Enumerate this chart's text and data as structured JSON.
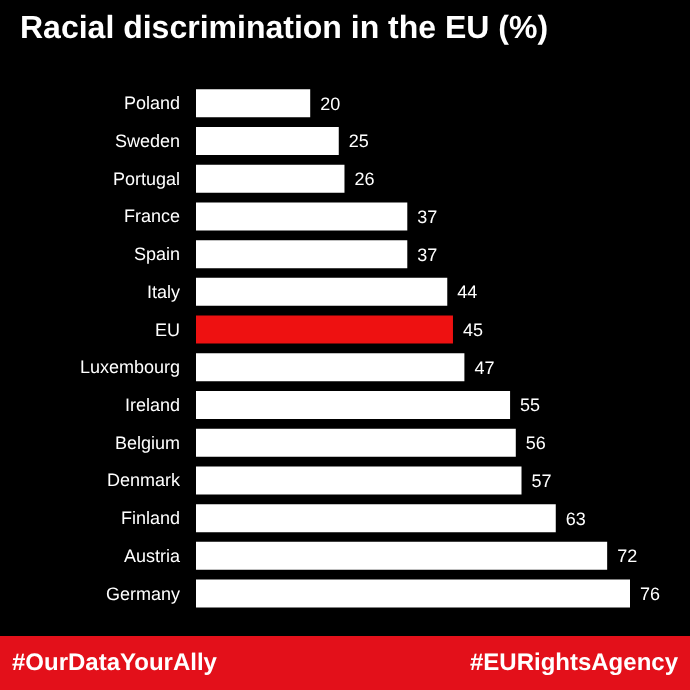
{
  "chart_data": {
    "type": "bar",
    "orientation": "horizontal",
    "title": "Racial discrimination in the EU (%)",
    "categories": [
      "Poland",
      "Sweden",
      "Portugal",
      "France",
      "Spain",
      "Italy",
      "EU",
      "Luxembourg",
      "Ireland",
      "Belgium",
      "Denmark",
      "Finland",
      "Austria",
      "Germany"
    ],
    "values": [
      20,
      25,
      26,
      37,
      37,
      44,
      45,
      47,
      55,
      56,
      57,
      63,
      72,
      76
    ],
    "colors": [
      "#ffffff",
      "#ffffff",
      "#ffffff",
      "#ffffff",
      "#ffffff",
      "#ffffff",
      "#ee1111",
      "#ffffff",
      "#ffffff",
      "#ffffff",
      "#ffffff",
      "#ffffff",
      "#ffffff",
      "#ffffff"
    ],
    "data_labels": true,
    "annotations": [
      "#OurDataYourAlly",
      "#EURightsAgency"
    ]
  }
}
